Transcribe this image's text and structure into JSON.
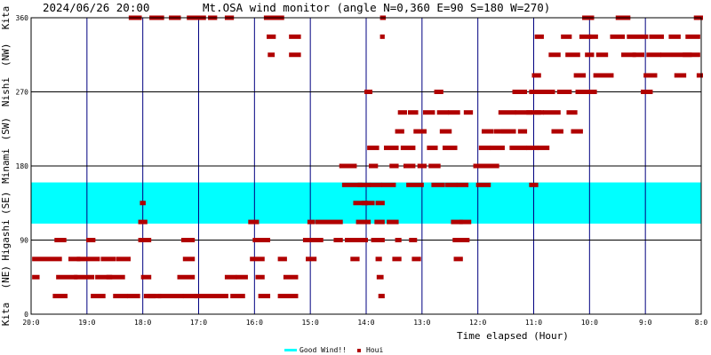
{
  "header": {
    "timestamp": "2024/06/26 20:00",
    "title": "Mt.OSA wind monitor (angle N=0,360 E=90 S=180 W=270)"
  },
  "left_axis_labels": [
    {
      "text": "Kita",
      "value": 360
    },
    {
      "text": "(NW)",
      "value": 315
    },
    {
      "text": "Nishi",
      "value": 270
    },
    {
      "text": "(SW)",
      "value": 225
    },
    {
      "text": "Minami",
      "value": 180
    },
    {
      "text": "(SE)",
      "value": 135
    },
    {
      "text": "Higashi",
      "value": 90
    },
    {
      "text": "(NE)",
      "value": 45
    },
    {
      "text": "Kita",
      "value": 0
    }
  ],
  "colors": {
    "grid": "#000080",
    "band": "#00ffff",
    "points": "#b00000"
  },
  "chart_data": {
    "type": "scatter",
    "title": "Mt.OSA wind monitor (angle N=0,360 E=90 S=180 W=270)",
    "xlabel": "Time elapsed (Hour)",
    "ylabel": "",
    "xlim": [
      20,
      8
    ],
    "ylim": [
      0,
      360
    ],
    "x_ticks": [
      {
        "value": 20,
        "label": "20:0"
      },
      {
        "value": 19,
        "label": "19:0"
      },
      {
        "value": 18,
        "label": "18:0"
      },
      {
        "value": 17,
        "label": "17:0"
      },
      {
        "value": 16,
        "label": "16:0"
      },
      {
        "value": 15,
        "label": "15:0"
      },
      {
        "value": 14,
        "label": "14:0"
      },
      {
        "value": 13,
        "label": "13:0"
      },
      {
        "value": 12,
        "label": "12:0"
      },
      {
        "value": 11,
        "label": "11:0"
      },
      {
        "value": 10,
        "label": "10:0"
      },
      {
        "value": 9,
        "label": "9:0"
      },
      {
        "value": 8,
        "label": "8:0"
      }
    ],
    "y_ticks": [
      0,
      90,
      180,
      270,
      360
    ],
    "grid": true,
    "legend": {
      "placement": "bottom",
      "entries": [
        {
          "label": "Good Wind!!",
          "kind": "band",
          "color": "#00ffff"
        },
        {
          "label": "Houi",
          "kind": "marker",
          "color": "#b00000"
        }
      ]
    },
    "band": {
      "name": "Good Wind!!",
      "y_range": [
        110,
        160
      ]
    },
    "series": [
      {
        "name": "Houi",
        "runs": [
          [
            19.95,
            19.88,
            45
          ],
          [
            19.95,
            19.48,
            67
          ],
          [
            19.55,
            19.4,
            90
          ],
          [
            19.52,
            19.2,
            45
          ],
          [
            19.58,
            19.38,
            22
          ],
          [
            19.3,
            19.15,
            67
          ],
          [
            19.2,
            18.9,
            45
          ],
          [
            19.15,
            18.8,
            67
          ],
          [
            18.98,
            18.88,
            90
          ],
          [
            18.9,
            18.7,
            22
          ],
          [
            18.82,
            18.58,
            45
          ],
          [
            18.72,
            18.52,
            67
          ],
          [
            18.62,
            18.35,
            45
          ],
          [
            18.5,
            18.3,
            22
          ],
          [
            18.45,
            18.25,
            67
          ],
          [
            18.25,
            18.08,
            22
          ],
          [
            18.22,
            18.05,
            360
          ],
          [
            18.05,
            17.88,
            90
          ],
          [
            18.05,
            17.95,
            112
          ],
          [
            18.02,
            17.98,
            135
          ],
          [
            18.0,
            17.88,
            45
          ],
          [
            17.95,
            17.8,
            22
          ],
          [
            17.88,
            17.7,
            22
          ],
          [
            17.85,
            17.65,
            360
          ],
          [
            17.7,
            17.3,
            22
          ],
          [
            17.5,
            17.35,
            360
          ],
          [
            17.35,
            17.1,
            45
          ],
          [
            17.28,
            17.1,
            90
          ],
          [
            17.25,
            17.1,
            67
          ],
          [
            17.25,
            17.05,
            22
          ],
          [
            17.18,
            16.9,
            360
          ],
          [
            17.05,
            16.5,
            22
          ],
          [
            16.8,
            16.7,
            360
          ],
          [
            16.5,
            16.35,
            45
          ],
          [
            16.5,
            16.4,
            360
          ],
          [
            16.4,
            16.2,
            22
          ],
          [
            16.3,
            16.15,
            45
          ],
          [
            16.08,
            15.95,
            112
          ],
          [
            16.05,
            15.85,
            67
          ],
          [
            16.0,
            15.75,
            90
          ],
          [
            15.95,
            15.85,
            45
          ],
          [
            15.9,
            15.75,
            22
          ],
          [
            15.8,
            15.5,
            360
          ],
          [
            15.75,
            15.65,
            337
          ],
          [
            15.73,
            15.67,
            315
          ],
          [
            15.55,
            15.45,
            67
          ],
          [
            15.55,
            15.25,
            22
          ],
          [
            15.45,
            15.25,
            45
          ],
          [
            15.35,
            15.2,
            337
          ],
          [
            15.35,
            15.2,
            315
          ],
          [
            15.1,
            14.8,
            90
          ],
          [
            15.05,
            14.92,
            67
          ],
          [
            15.02,
            14.95,
            112
          ],
          [
            14.88,
            14.45,
            112
          ],
          [
            14.55,
            14.45,
            90
          ],
          [
            14.45,
            14.3,
            180
          ],
          [
            14.4,
            14.1,
            157
          ],
          [
            14.35,
            14.15,
            90
          ],
          [
            14.28,
            14.2,
            180
          ],
          [
            14.25,
            14.15,
            67
          ],
          [
            14.2,
            14.0,
            135
          ],
          [
            14.15,
            13.95,
            112
          ],
          [
            14.12,
            13.95,
            157
          ],
          [
            14.1,
            14.0,
            90
          ],
          [
            14.05,
            13.88,
            135
          ],
          [
            14.0,
            13.92,
            270
          ],
          [
            13.95,
            13.8,
            202
          ],
          [
            13.92,
            13.82,
            180
          ],
          [
            13.9,
            13.75,
            157
          ],
          [
            13.88,
            13.7,
            90
          ],
          [
            13.82,
            13.7,
            112
          ],
          [
            13.8,
            13.7,
            135
          ],
          [
            13.8,
            13.75,
            67
          ],
          [
            13.78,
            13.72,
            45
          ],
          [
            13.75,
            13.7,
            22
          ],
          [
            13.72,
            13.68,
            360
          ],
          [
            13.72,
            13.7,
            337
          ],
          [
            13.7,
            13.5,
            157
          ],
          [
            13.65,
            13.45,
            202
          ],
          [
            13.6,
            13.45,
            112
          ],
          [
            13.55,
            13.45,
            180
          ],
          [
            13.5,
            13.4,
            67
          ],
          [
            13.45,
            13.35,
            222
          ],
          [
            13.45,
            13.4,
            90
          ],
          [
            13.4,
            13.3,
            245
          ],
          [
            13.35,
            13.15,
            202
          ],
          [
            13.3,
            13.15,
            180
          ],
          [
            13.25,
            13.0,
            157
          ],
          [
            13.22,
            13.1,
            245
          ],
          [
            13.2,
            13.12,
            90
          ],
          [
            13.15,
            13.05,
            67
          ],
          [
            13.12,
            12.95,
            222
          ],
          [
            13.05,
            12.95,
            180
          ],
          [
            12.95,
            12.8,
            245
          ],
          [
            12.88,
            12.75,
            202
          ],
          [
            12.85,
            12.7,
            180
          ],
          [
            12.8,
            12.62,
            157
          ],
          [
            12.75,
            12.65,
            270
          ],
          [
            12.7,
            12.55,
            245
          ],
          [
            12.65,
            12.5,
            222
          ],
          [
            12.6,
            12.4,
            202
          ],
          [
            12.55,
            12.4,
            157
          ],
          [
            12.5,
            12.35,
            245
          ],
          [
            12.45,
            12.3,
            112
          ],
          [
            12.42,
            12.28,
            90
          ],
          [
            12.4,
            12.3,
            67
          ],
          [
            12.35,
            12.2,
            157
          ],
          [
            12.3,
            12.15,
            112
          ],
          [
            12.28,
            12.18,
            90
          ],
          [
            12.22,
            12.12,
            245
          ],
          [
            12.05,
            11.85,
            180
          ],
          [
            12.0,
            11.8,
            157
          ],
          [
            11.95,
            11.8,
            202
          ],
          [
            11.9,
            11.75,
            222
          ],
          [
            11.85,
            11.65,
            180
          ],
          [
            11.75,
            11.55,
            202
          ],
          [
            11.68,
            11.45,
            222
          ],
          [
            11.6,
            11.35,
            245
          ],
          [
            11.55,
            11.35,
            222
          ],
          [
            11.4,
            11.15,
            202
          ],
          [
            11.35,
            11.15,
            270
          ],
          [
            11.3,
            11.05,
            245
          ],
          [
            11.25,
            11.15,
            222
          ],
          [
            11.1,
            10.9,
            245
          ],
          [
            11.1,
            10.95,
            202
          ],
          [
            11.05,
            10.95,
            157
          ],
          [
            11.05,
            10.9,
            270
          ],
          [
            11.0,
            10.9,
            290
          ],
          [
            10.95,
            10.85,
            245
          ],
          [
            10.95,
            10.85,
            337
          ],
          [
            10.9,
            10.75,
            202
          ],
          [
            10.85,
            10.65,
            270
          ],
          [
            10.8,
            10.55,
            245
          ],
          [
            10.7,
            10.55,
            315
          ],
          [
            10.65,
            10.5,
            222
          ],
          [
            10.55,
            10.35,
            270
          ],
          [
            10.48,
            10.35,
            337
          ],
          [
            10.4,
            10.2,
            315
          ],
          [
            10.38,
            10.25,
            245
          ],
          [
            10.3,
            10.15,
            222
          ],
          [
            10.25,
            10.1,
            290
          ],
          [
            10.22,
            10.05,
            270
          ],
          [
            10.15,
            10.0,
            337
          ],
          [
            10.1,
            9.95,
            360
          ],
          [
            10.05,
            9.95,
            315
          ],
          [
            10.0,
            9.9,
            270
          ],
          [
            9.98,
            9.88,
            337
          ],
          [
            9.9,
            9.6,
            290
          ],
          [
            9.85,
            9.7,
            315
          ],
          [
            9.6,
            9.4,
            337
          ],
          [
            9.5,
            9.3,
            360
          ],
          [
            9.4,
            9.2,
            315
          ],
          [
            9.3,
            8.98,
            337
          ],
          [
            9.2,
            9.05,
            315
          ],
          [
            9.05,
            8.9,
            270
          ],
          [
            9.0,
            8.82,
            290
          ],
          [
            8.95,
            8.75,
            315
          ],
          [
            8.9,
            8.7,
            337
          ],
          [
            8.7,
            8.2,
            315
          ],
          [
            8.55,
            8.4,
            337
          ],
          [
            8.45,
            8.3,
            290
          ],
          [
            8.3,
            8.05,
            315
          ],
          [
            8.25,
            8.05,
            337
          ],
          [
            8.1,
            8.0,
            360
          ],
          [
            8.05,
            8.0,
            290
          ]
        ]
      }
    ]
  }
}
